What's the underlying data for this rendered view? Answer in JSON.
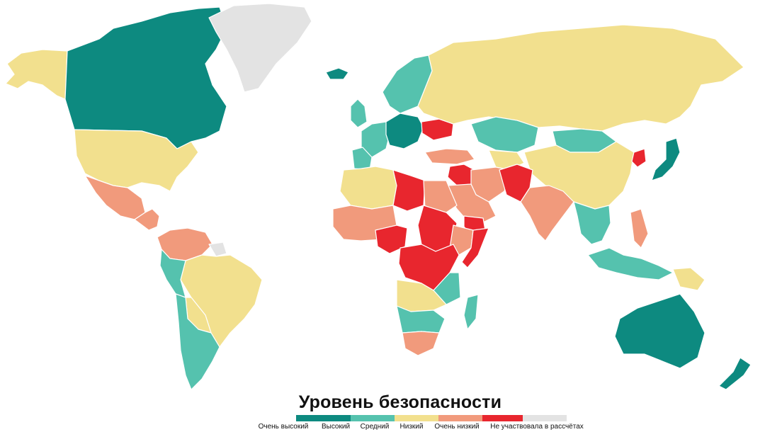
{
  "title": "Уровень безопасности",
  "legend": [
    {
      "label": "Очень высокий",
      "color": "#0d8a80"
    },
    {
      "label": "Высокий",
      "color": "#55c2ae"
    },
    {
      "label": "Средний",
      "color": "#f2e08e"
    },
    {
      "label": "Низкий",
      "color": "#f19a7c"
    },
    {
      "label": "Очень низкий",
      "color": "#e8262e"
    },
    {
      "label": "Не участвовала в рассчётах",
      "color": "#e3e3e3"
    }
  ],
  "colors": {
    "very_high": "#0d8a80",
    "high": "#55c2ae",
    "medium": "#f2e08e",
    "low": "#f19a7c",
    "very_low": "#e8262e",
    "no_data": "#e3e3e3"
  },
  "regions": [
    {
      "name": "alaska",
      "level": "medium"
    },
    {
      "name": "canada",
      "level": "very_high"
    },
    {
      "name": "greenland",
      "level": "no_data"
    },
    {
      "name": "usa",
      "level": "medium"
    },
    {
      "name": "mexico",
      "level": "low"
    },
    {
      "name": "central-america",
      "level": "low"
    },
    {
      "name": "colombia-venezuela",
      "level": "low"
    },
    {
      "name": "guiana",
      "level": "no_data"
    },
    {
      "name": "brazil",
      "level": "medium"
    },
    {
      "name": "peru",
      "level": "high"
    },
    {
      "name": "bolivia",
      "level": "medium"
    },
    {
      "name": "argentina-chile",
      "level": "high"
    },
    {
      "name": "iceland",
      "level": "very_high"
    },
    {
      "name": "uk-ireland",
      "level": "high"
    },
    {
      "name": "scandinavia",
      "level": "high"
    },
    {
      "name": "western-europe",
      "level": "high"
    },
    {
      "name": "central-europe",
      "level": "very_high"
    },
    {
      "name": "iberia",
      "level": "high"
    },
    {
      "name": "ukraine",
      "level": "very_low"
    },
    {
      "name": "russia",
      "level": "medium"
    },
    {
      "name": "kazakhstan",
      "level": "high"
    },
    {
      "name": "mongolia",
      "level": "high"
    },
    {
      "name": "china",
      "level": "medium"
    },
    {
      "name": "north-korea",
      "level": "very_low"
    },
    {
      "name": "japan",
      "level": "very_high"
    },
    {
      "name": "turkey-caucasus",
      "level": "low"
    },
    {
      "name": "middle-east",
      "level": "low"
    },
    {
      "name": "syria-iraq",
      "level": "very_low"
    },
    {
      "name": "arabia",
      "level": "low"
    },
    {
      "name": "yemen",
      "level": "very_low"
    },
    {
      "name": "afghanistan-pakistan",
      "level": "very_low"
    },
    {
      "name": "central-asia",
      "level": "medium"
    },
    {
      "name": "india",
      "level": "low"
    },
    {
      "name": "southeast-asia",
      "level": "high"
    },
    {
      "name": "philippines",
      "level": "low"
    },
    {
      "name": "indonesia",
      "level": "high"
    },
    {
      "name": "papua",
      "level": "medium"
    },
    {
      "name": "australia",
      "level": "very_high"
    },
    {
      "name": "new-zealand",
      "level": "very_high"
    },
    {
      "name": "maghreb",
      "level": "medium"
    },
    {
      "name": "libya",
      "level": "very_low"
    },
    {
      "name": "egypt",
      "level": "low"
    },
    {
      "name": "west-africa",
      "level": "low"
    },
    {
      "name": "nigeria",
      "level": "very_low"
    },
    {
      "name": "sudan",
      "level": "very_low"
    },
    {
      "name": "ethiopia",
      "level": "low"
    },
    {
      "name": "somalia",
      "level": "very_low"
    },
    {
      "name": "central-africa",
      "level": "very_low"
    },
    {
      "name": "east-africa",
      "level": "high"
    },
    {
      "name": "angola-zambia",
      "level": "medium"
    },
    {
      "name": "southern-africa",
      "level": "high"
    },
    {
      "name": "south-africa",
      "level": "low"
    },
    {
      "name": "madagascar",
      "level": "high"
    }
  ]
}
